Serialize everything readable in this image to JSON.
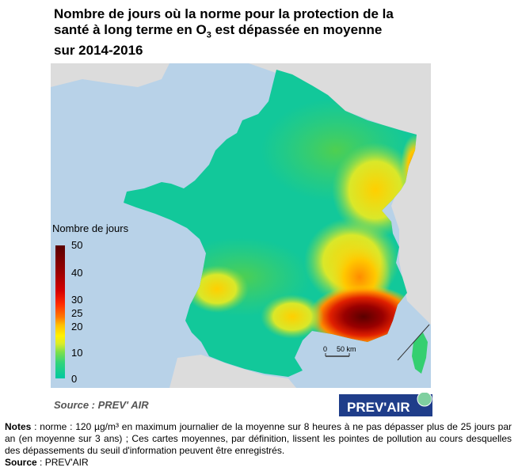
{
  "title": {
    "line1": "Nombre de jours où la norme pour la protection de la",
    "line2a": "santé à long terme en O",
    "line2sub": "3",
    "line2b": " est dépassée en moyenne",
    "line3": "sur 2014-2016"
  },
  "legend": {
    "title": "Nombre de jours",
    "ticks": [
      "50",
      "40",
      "30",
      "25",
      "20",
      "10",
      "0"
    ]
  },
  "scale_bar": {
    "zero": "0",
    "label": "50 km"
  },
  "map_source": "Source : PREV' AIR",
  "logo_text": "PREV'AIR",
  "notes": {
    "label": "Notes",
    "text": " : norme : 120 µg/m³ en maximum journalier de la moyenne sur 8 heures à ne pas dépasser plus de 25 jours par an (en moyenne sur 3 ans) ; Ces cartes moyennes, par définition, lissent les pointes de pollution au cours desquelles des dépassements du seuil d'information peuvent être enregistrés.",
    "source_label": "Source",
    "source_text": " : PREV'AIR"
  },
  "colors": {
    "sea": "#b8d2e8",
    "land_outside": "#dcdcdc",
    "low": "#00c8a0",
    "mid": "#3fcf6a",
    "high": "#e04000",
    "peak": "#6a0000"
  }
}
